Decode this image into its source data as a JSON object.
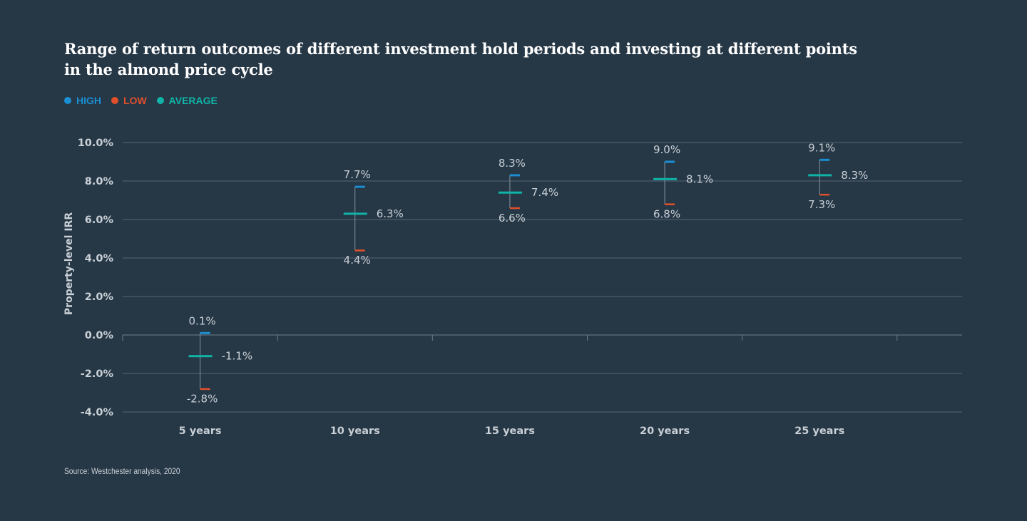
{
  "title": "Range of return outcomes of different investment hold periods and investing at different points in the almond price cycle",
  "legend": [
    {
      "label": "HIGH",
      "color": "#1b8fd1"
    },
    {
      "label": "LOW",
      "color": "#e0502b"
    },
    {
      "label": "AVERAGE",
      "color": "#10b4a6"
    }
  ],
  "source": "Source: Westchester analysis, 2020",
  "chart_data": {
    "type": "range",
    "title": "Range of return outcomes of different investment hold periods and investing at different points in the almond price cycle",
    "ylabel": "Property-level IRR",
    "xlabel": "",
    "ylim": [
      -4,
      10
    ],
    "yticks": [
      10,
      8,
      6,
      4,
      2,
      0,
      -2,
      -4
    ],
    "ytick_labels": [
      "10.0%",
      "8.0%",
      "6.0%",
      "4.0%",
      "2.0%",
      "0.0%",
      "-2.0%",
      "-4.0%"
    ],
    "grid": true,
    "legend_position": "top-left",
    "categories": [
      "5 years",
      "10 years",
      "15 years",
      "20 years",
      "25 years"
    ],
    "series": [
      {
        "name": "HIGH",
        "values": [
          0.1,
          7.7,
          8.3,
          9.0,
          9.1
        ],
        "labels": [
          "0.1%",
          "7.7%",
          "8.3%",
          "9.0%",
          "9.1%"
        ]
      },
      {
        "name": "LOW",
        "values": [
          -2.8,
          4.4,
          6.6,
          6.8,
          7.3
        ],
        "labels": [
          "-2.8%",
          "4.4%",
          "6.6%",
          "6.8%",
          "7.3%"
        ]
      },
      {
        "name": "AVERAGE",
        "values": [
          -1.1,
          6.3,
          7.4,
          8.1,
          8.3
        ],
        "labels": [
          "-1.1%",
          "6.3%",
          "7.4%",
          "8.1%",
          "8.3%"
        ]
      }
    ]
  }
}
